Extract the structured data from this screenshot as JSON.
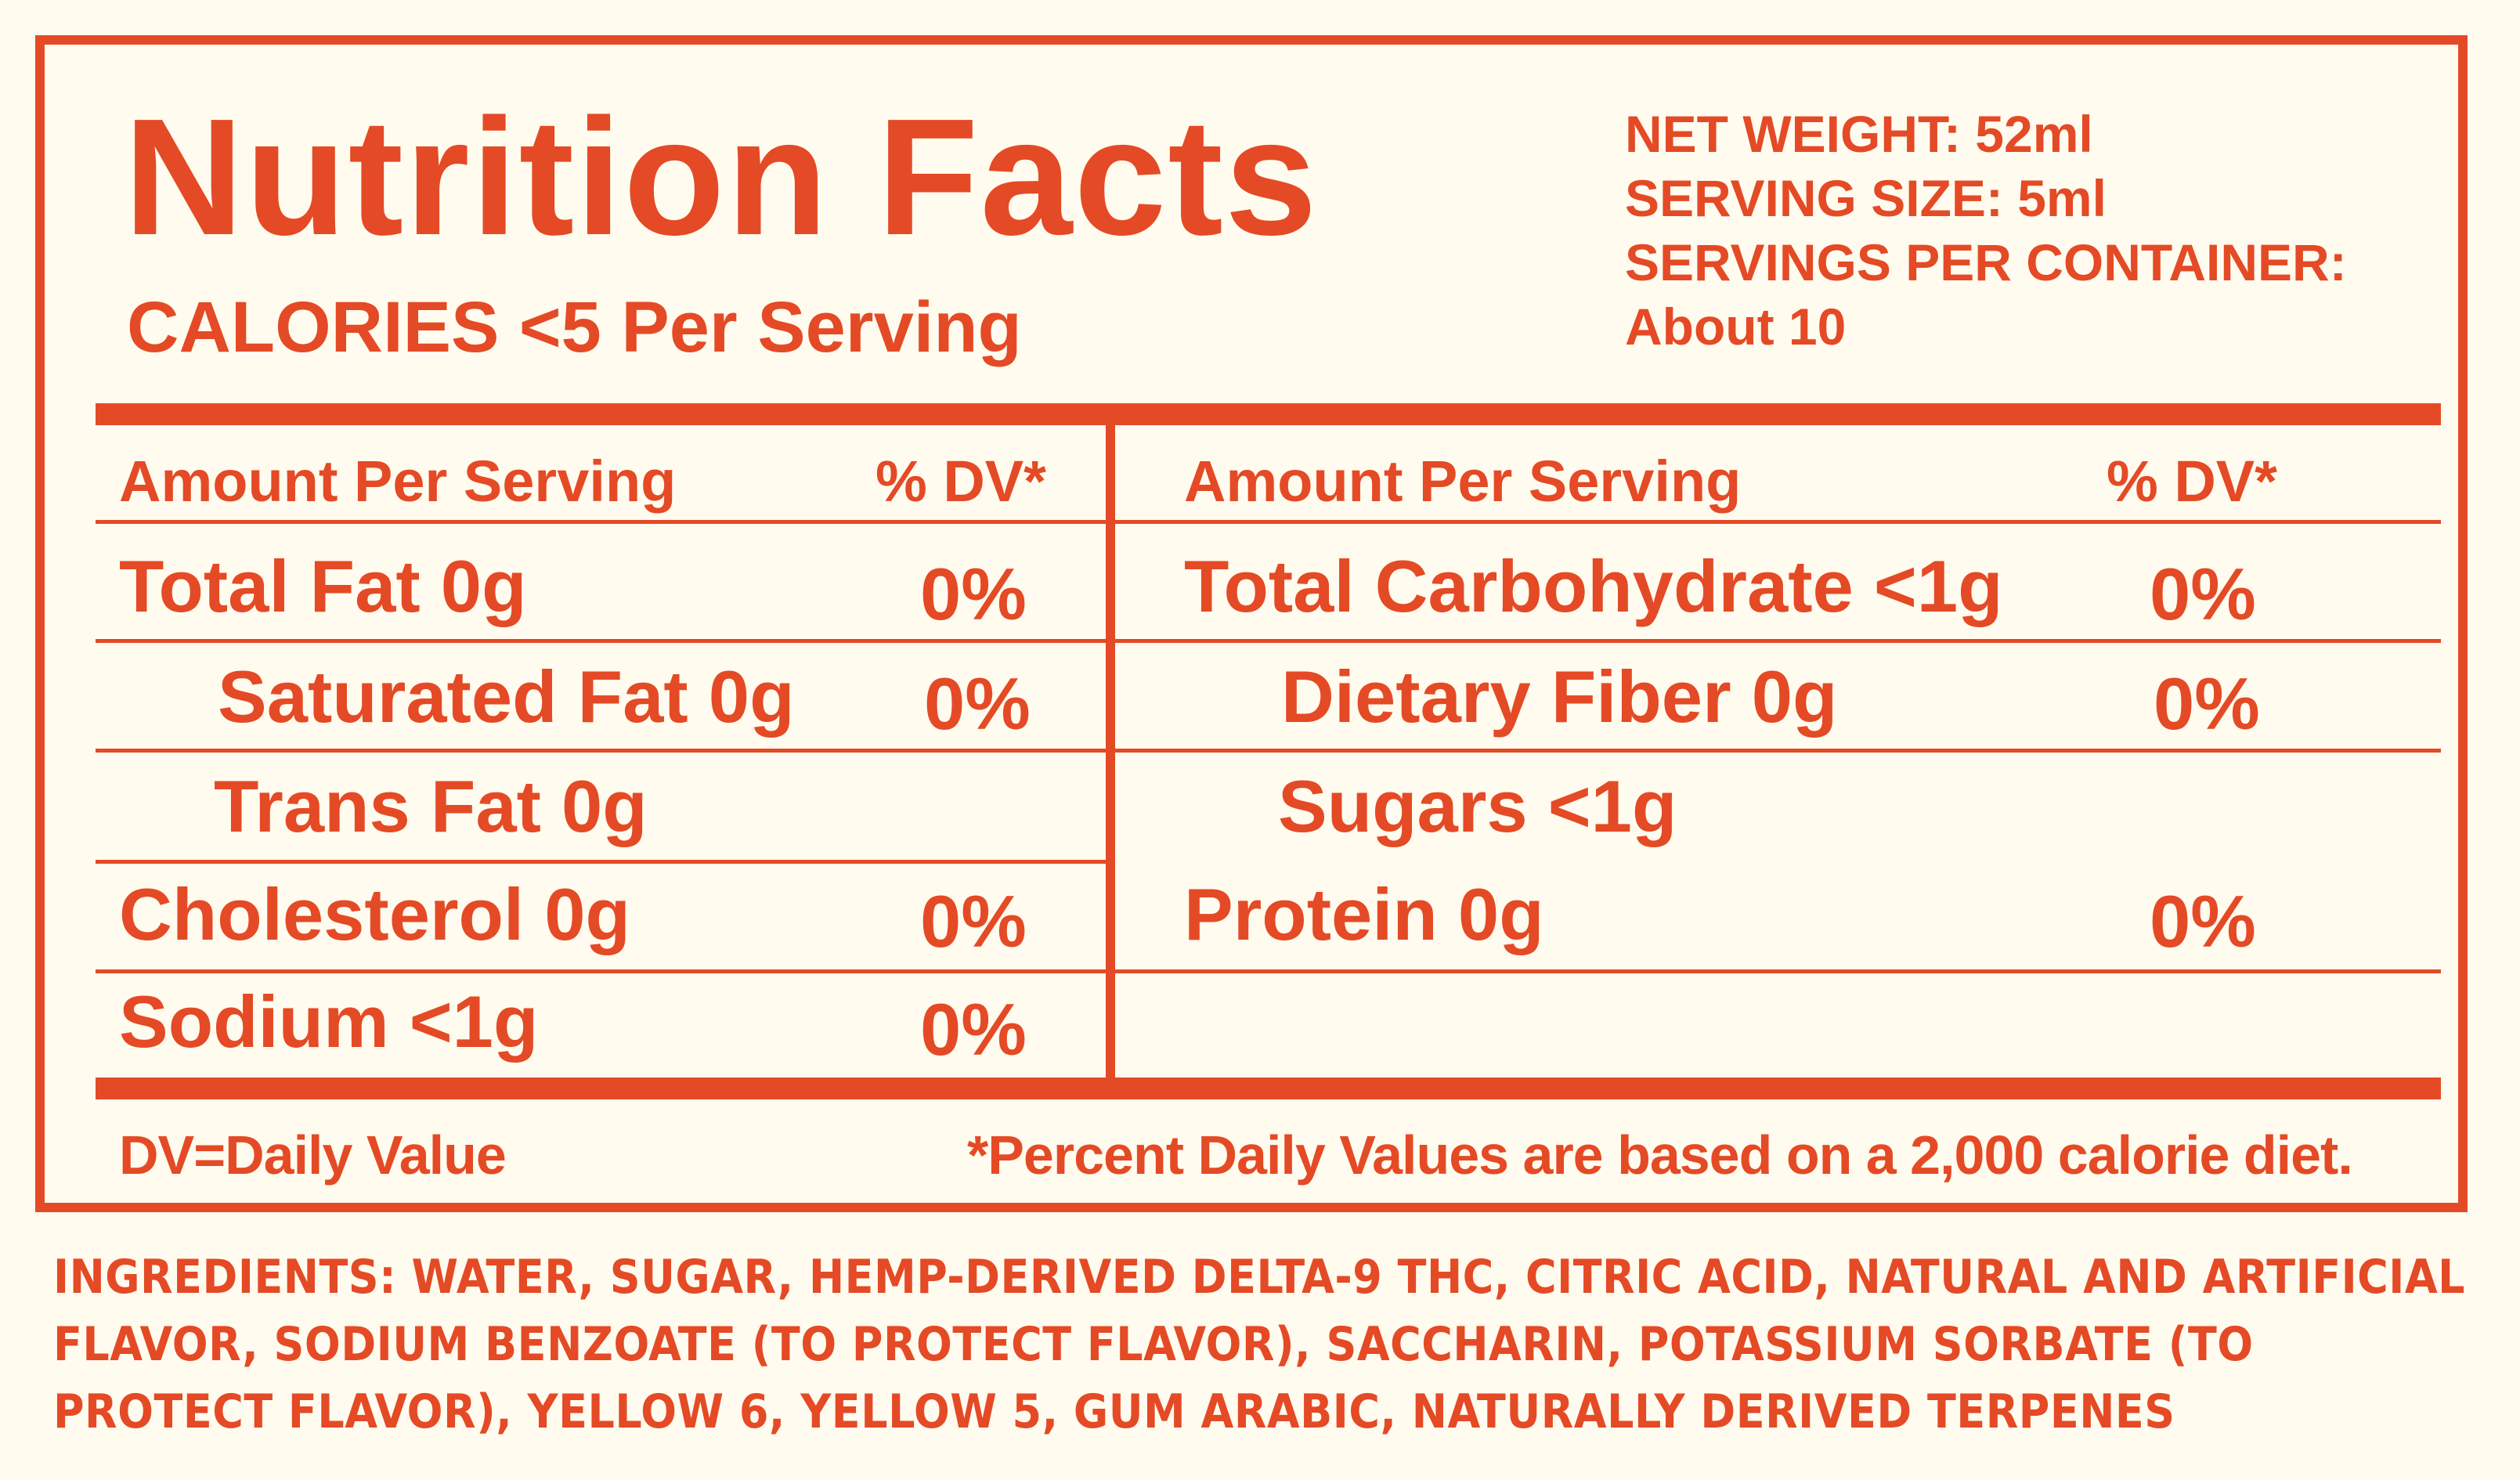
{
  "title": "Nutrition Facts",
  "calories": "CALORIES <5 Per Serving",
  "meta": {
    "net_weight": "NET WEIGHT: 52ml",
    "serving_size": "SERVING SIZE: 5ml",
    "servings_per_container": "SERVINGS PER CONTAINER:",
    "servings_value": "About 10"
  },
  "headers": {
    "amount_left": "Amount Per Serving",
    "dv_left": "% DV*",
    "amount_right": "Amount Per Serving",
    "dv_right": "% DV*"
  },
  "left_rows": [
    {
      "label": "Total Fat 0g",
      "dv": "0%"
    },
    {
      "label": "Saturated Fat 0g",
      "dv": "0%"
    },
    {
      "label": "Trans Fat 0g",
      "dv": ""
    },
    {
      "label": "Cholesterol 0g",
      "dv": "0%"
    },
    {
      "label": "Sodium <1g",
      "dv": "0%"
    }
  ],
  "right_rows": [
    {
      "label": "Total Carbohydrate <1g",
      "dv": "0%"
    },
    {
      "label": "Dietary Fiber 0g",
      "dv": "0%"
    },
    {
      "label": "Sugars <1g",
      "dv": ""
    },
    {
      "label": "Protein 0g",
      "dv": "0%"
    }
  ],
  "footer": {
    "dv_note": "DV=Daily Value",
    "percent_note": "*Percent Daily Values are based on a 2,000 calorie diet."
  },
  "ingredients": "INGREDIENTS: WATER, SUGAR, HEMP-DERIVED DELTA-9 THC, CITRIC ACID, NATURAL AND ARTIFICIAL FLAVOR, SODIUM BENZOATE (TO PROTECT FLAVOR), SACCHARIN, POTASSIUM SORBATE (TO PROTECT FLAVOR), YELLOW 6, YELLOW 5, GUM ARABIC, NATURALLY DERIVED TERPENES",
  "colors": {
    "accent": "#e44a25",
    "background": "#fffbef"
  }
}
